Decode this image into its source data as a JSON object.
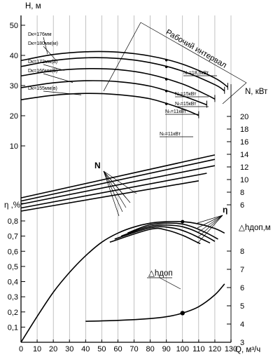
{
  "chart_data": {
    "type": "line",
    "x": {
      "label": "Q, м³/ч",
      "range": [
        0,
        130
      ],
      "ticks": [
        0,
        10,
        20,
        30,
        40,
        50,
        60,
        70,
        80,
        90,
        100,
        110,
        120,
        130
      ]
    },
    "panels": [
      {
        "id": "head",
        "axis_label": "H, м",
        "range": [
          5,
          55
        ],
        "ticks": [
          10,
          20,
          30,
          40,
          50
        ],
        "series": [
          {
            "name": "Dк=176мм",
            "points": [
              [
                0,
                38.3
              ],
              [
                20,
                40.3
              ],
              [
                40,
                41.2
              ],
              [
                60,
                41.1
              ],
              [
                80,
                39.8
              ],
              [
                100,
                37.1
              ],
              [
                120,
                32.5
              ],
              [
                128,
                29.5
              ]
            ]
          },
          {
            "name": "Dк=180мм(м)",
            "points": [
              [
                0,
                36.3
              ],
              [
                20,
                38.3
              ],
              [
                40,
                39.2
              ],
              [
                60,
                39.0
              ],
              [
                80,
                37.6
              ],
              [
                100,
                34.8
              ],
              [
                120,
                30.3
              ],
              [
                126,
                28.2
              ]
            ]
          },
          {
            "name": "Dк=172мм(а)",
            "points": [
              [
                0,
                33.2
              ],
              [
                20,
                34.9
              ],
              [
                40,
                35.6
              ],
              [
                60,
                35.3
              ],
              [
                80,
                33.7
              ],
              [
                100,
                30.5
              ],
              [
                115,
                26.9
              ],
              [
                120,
                25.5
              ]
            ]
          },
          {
            "name": "Dк=166мм(б)",
            "points": [
              [
                0,
                29.3
              ],
              [
                20,
                30.9
              ],
              [
                40,
                31.6
              ],
              [
                60,
                31.3
              ],
              [
                80,
                29.8
              ],
              [
                100,
                26.6
              ],
              [
                115,
                23.6
              ]
            ]
          },
          {
            "name": "Dк=155мм(в)",
            "points": [
              [
                0,
                25.3
              ],
              [
                20,
                26.8
              ],
              [
                40,
                27.4
              ],
              [
                60,
                27.0
              ],
              [
                80,
                25.6
              ],
              [
                100,
                22.3
              ],
              [
                110,
                20.1
              ]
            ]
          }
        ],
        "motor_power_labels": [
          "Nₙ=18,5кВт",
          "Nₙ=15кВт",
          "Nₙ=15кВт",
          "Nₙ=11кВт",
          "Nₙ=11кВт"
        ],
        "annotation": "Рабочий интервал"
      },
      {
        "id": "power",
        "axis_label": "N, кВт",
        "range": [
          4,
          22
        ],
        "ticks": [
          6,
          8,
          10,
          12,
          14,
          16,
          18,
          20
        ],
        "series_label": "N",
        "series": [
          {
            "name": "Dк=176мм",
            "points": [
              [
                0,
                7.1
              ],
              [
                120,
                13.9
              ]
            ]
          },
          {
            "name": "Dк=180мм(м)",
            "points": [
              [
                0,
                6.6
              ],
              [
                120,
                13.2
              ]
            ]
          },
          {
            "name": "Dк=172мм(а)",
            "points": [
              [
                0,
                6.1
              ],
              [
                120,
                12.2
              ]
            ]
          },
          {
            "name": "Dк=166мм(б)",
            "points": [
              [
                0,
                5.5
              ],
              [
                115,
                11.0
              ]
            ]
          },
          {
            "name": "Dк=155мм(в)",
            "points": [
              [
                0,
                5.0
              ],
              [
                110,
                9.8
              ]
            ]
          }
        ]
      },
      {
        "id": "efficiency",
        "axis_label": "η ,%",
        "range": [
          0,
          0.95
        ],
        "ticks": [
          0.1,
          0.2,
          0.3,
          0.4,
          0.5,
          0.6,
          0.7,
          0.8
        ],
        "series_label": "η",
        "series": [
          {
            "name": "main",
            "points": [
              [
                0,
                0
              ],
              [
                10,
                0.17
              ],
              [
                20,
                0.33
              ],
              [
                30,
                0.46
              ],
              [
                40,
                0.57
              ],
              [
                50,
                0.66
              ],
              [
                60,
                0.72
              ],
              [
                70,
                0.76
              ],
              [
                80,
                0.785
              ],
              [
                90,
                0.795
              ],
              [
                100,
                0.795
              ],
              [
                110,
                0.78
              ],
              [
                120,
                0.75
              ],
              [
                126,
                0.72
              ]
            ]
          },
          {
            "name": "b2",
            "points": [
              [
                66,
                0.72
              ],
              [
                80,
                0.775
              ],
              [
                95,
                0.785
              ],
              [
                105,
                0.765
              ],
              [
                115,
                0.72
              ],
              [
                122,
                0.68
              ]
            ]
          },
          {
            "name": "b3",
            "points": [
              [
                62,
                0.7
              ],
              [
                80,
                0.765
              ],
              [
                95,
                0.77
              ],
              [
                105,
                0.745
              ],
              [
                115,
                0.695
              ],
              [
                120,
                0.665
              ]
            ]
          },
          {
            "name": "b4",
            "points": [
              [
                58,
                0.68
              ],
              [
                80,
                0.755
              ],
              [
                93,
                0.755
              ],
              [
                103,
                0.725
              ],
              [
                113,
                0.675
              ],
              [
                117,
                0.655
              ]
            ]
          },
          {
            "name": "b5",
            "points": [
              [
                55,
                0.66
              ],
              [
                80,
                0.745
              ],
              [
                90,
                0.74
              ],
              [
                100,
                0.705
              ],
              [
                108,
                0.665
              ],
              [
                111,
                0.65
              ]
            ]
          }
        ]
      },
      {
        "id": "npsh",
        "axis_label": "△hдоп,м",
        "range": [
          2.5,
          10.5
        ],
        "ticks": [
          3,
          4,
          5,
          6,
          7,
          8
        ],
        "series_label": "△hдоп",
        "series": [
          {
            "name": "△hдоп",
            "points": [
              [
                40,
                4.15
              ],
              [
                60,
                4.2
              ],
              [
                80,
                4.3
              ],
              [
                90,
                4.4
              ],
              [
                100,
                4.6
              ],
              [
                110,
                4.95
              ],
              [
                120,
                5.6
              ],
              [
                126,
                6.2
              ]
            ]
          }
        ]
      }
    ]
  }
}
